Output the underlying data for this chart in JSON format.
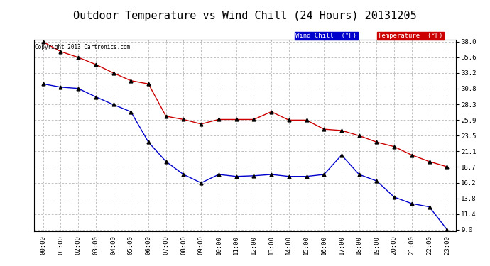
{
  "title": "Outdoor Temperature vs Wind Chill (24 Hours) 20131205",
  "copyright": "Copyright 2013 Cartronics.com",
  "x_labels": [
    "00:00",
    "01:00",
    "02:00",
    "03:00",
    "04:00",
    "05:00",
    "06:00",
    "07:00",
    "08:00",
    "09:00",
    "10:00",
    "11:00",
    "12:00",
    "13:00",
    "14:00",
    "15:00",
    "16:00",
    "17:00",
    "18:00",
    "19:00",
    "20:00",
    "21:00",
    "22:00",
    "23:00"
  ],
  "temperature": [
    38.0,
    36.5,
    35.6,
    34.5,
    33.2,
    32.0,
    31.5,
    26.5,
    26.0,
    25.3,
    26.0,
    26.0,
    26.0,
    27.2,
    25.9,
    25.9,
    24.5,
    24.3,
    23.5,
    22.5,
    21.8,
    20.5,
    19.5,
    18.7
  ],
  "wind_chill": [
    31.5,
    31.0,
    30.8,
    29.5,
    28.3,
    27.2,
    22.5,
    19.5,
    17.5,
    16.2,
    17.5,
    17.2,
    17.3,
    17.5,
    17.2,
    17.2,
    17.5,
    20.5,
    17.5,
    16.5,
    14.0,
    13.0,
    12.5,
    9.0
  ],
  "ylim_min": 9.0,
  "ylim_max": 38.0,
  "yticks": [
    9.0,
    11.4,
    13.8,
    16.2,
    18.7,
    21.1,
    23.5,
    25.9,
    28.3,
    30.8,
    33.2,
    35.6,
    38.0
  ],
  "temp_color": "#cc0000",
  "wind_color": "#0000cc",
  "marker_color": "#000000",
  "background_color": "#ffffff",
  "grid_color": "#aaaaaa",
  "title_fontsize": 11,
  "legend_wind_bg": "#0000cc",
  "legend_temp_bg": "#cc0000",
  "legend_text_color": "#ffffff"
}
